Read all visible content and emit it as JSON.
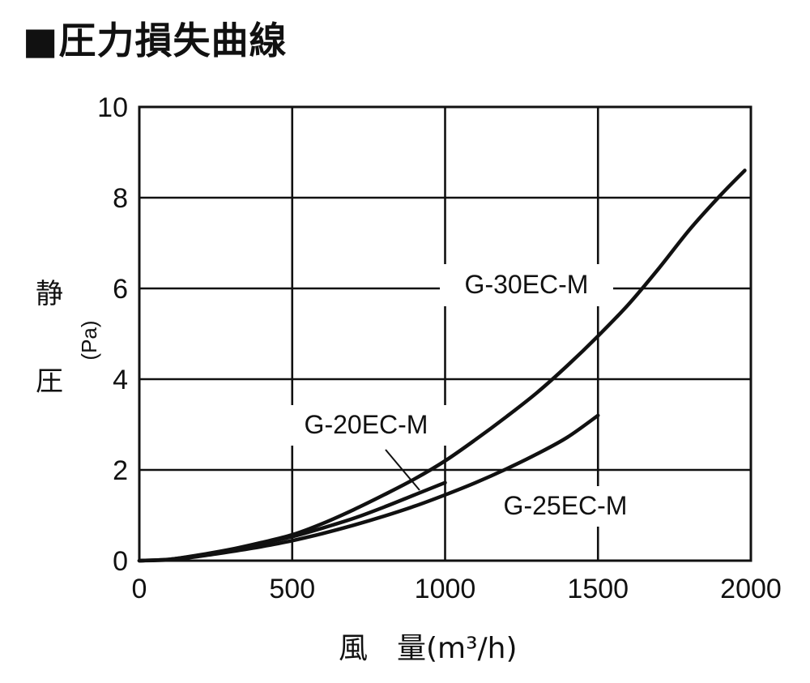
{
  "chart_data": {
    "type": "line",
    "title": "■圧力損失曲線",
    "xlabel": "風　量(m³/h)",
    "ylabel_main_top": "静",
    "ylabel_main_bottom": "圧",
    "ylabel_unit": "(Pa)",
    "xlim": [
      0,
      2000
    ],
    "ylim": [
      0,
      10
    ],
    "x_ticks": [
      0,
      500,
      1000,
      1500,
      2000
    ],
    "y_ticks": [
      0,
      2,
      4,
      6,
      8,
      10
    ],
    "grid": true,
    "series": [
      {
        "name": "G-30EC-M",
        "points": [
          [
            0,
            0
          ],
          [
            100,
            0.03
          ],
          [
            200,
            0.13
          ],
          [
            300,
            0.25
          ],
          [
            400,
            0.4
          ],
          [
            500,
            0.57
          ],
          [
            600,
            0.82
          ],
          [
            700,
            1.12
          ],
          [
            800,
            1.45
          ],
          [
            900,
            1.8
          ],
          [
            1000,
            2.2
          ],
          [
            1100,
            2.67
          ],
          [
            1200,
            3.17
          ],
          [
            1300,
            3.7
          ],
          [
            1400,
            4.3
          ],
          [
            1500,
            4.95
          ],
          [
            1600,
            5.65
          ],
          [
            1700,
            6.45
          ],
          [
            1800,
            7.3
          ],
          [
            1900,
            8.05
          ],
          [
            1980,
            8.6
          ]
        ]
      },
      {
        "name": "G-20EC-M",
        "points": [
          [
            0,
            0
          ],
          [
            100,
            0.03
          ],
          [
            200,
            0.12
          ],
          [
            300,
            0.24
          ],
          [
            400,
            0.38
          ],
          [
            500,
            0.53
          ],
          [
            600,
            0.72
          ],
          [
            700,
            0.93
          ],
          [
            800,
            1.18
          ],
          [
            900,
            1.45
          ],
          [
            1000,
            1.72
          ]
        ]
      },
      {
        "name": "G-25EC-M",
        "points": [
          [
            0,
            0
          ],
          [
            100,
            0.02
          ],
          [
            200,
            0.1
          ],
          [
            300,
            0.2
          ],
          [
            400,
            0.31
          ],
          [
            500,
            0.44
          ],
          [
            600,
            0.6
          ],
          [
            700,
            0.78
          ],
          [
            800,
            0.98
          ],
          [
            900,
            1.2
          ],
          [
            1000,
            1.45
          ],
          [
            1100,
            1.72
          ],
          [
            1200,
            2.02
          ],
          [
            1300,
            2.35
          ],
          [
            1400,
            2.72
          ],
          [
            1500,
            3.2
          ]
        ]
      }
    ]
  }
}
